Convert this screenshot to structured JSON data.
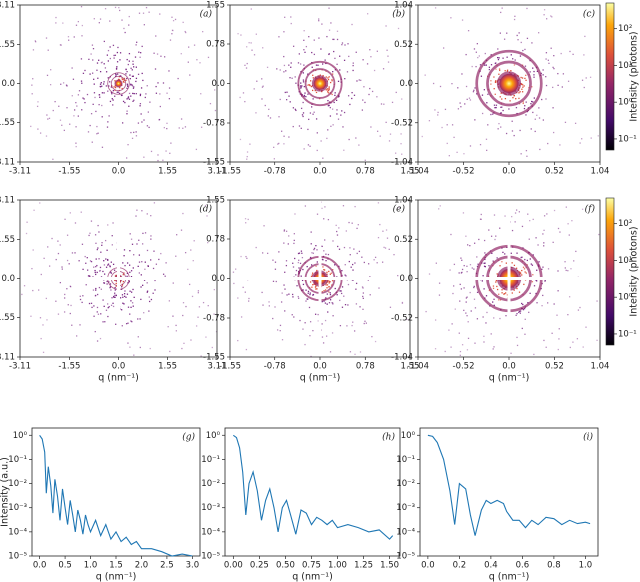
{
  "chart_data": [
    {
      "type": "image",
      "title": "(a)",
      "ylabel": "q (nm⁻¹)",
      "xlim": [
        -3.11,
        3.11
      ],
      "ylim": [
        -3.11,
        3.11
      ],
      "xticks": [
        -3.11,
        -1.55,
        {
          "value": 0,
          "label": "0.0"
        },
        1.55,
        3.11
      ],
      "yticks": [
        -3.11,
        -1.55,
        {
          "value": 0,
          "label": "0.0"
        },
        1.55,
        3.11
      ]
    },
    {
      "type": "image",
      "title": "(b)",
      "xlim": [
        -1.55,
        1.55
      ],
      "ylim": [
        -1.55,
        1.55
      ],
      "xticks": [
        -1.55,
        -0.78,
        {
          "value": 0,
          "label": "0.0"
        },
        0.78,
        1.55
      ],
      "yticks": [
        -1.55,
        -0.78,
        {
          "value": 0,
          "label": "0.0"
        },
        0.78,
        1.55
      ]
    },
    {
      "type": "image",
      "title": "(c)",
      "xlim": [
        -1.04,
        1.04
      ],
      "ylim": [
        -1.04,
        1.04
      ],
      "xticks": [
        -1.04,
        -0.52,
        {
          "value": 0,
          "label": "0.0"
        },
        0.52,
        1.04
      ],
      "yticks": [
        -1.04,
        -0.52,
        {
          "value": 0,
          "label": "0.0"
        },
        0.52,
        1.04
      ]
    },
    {
      "type": "colorbar",
      "label": "Intensity (photons)",
      "yscale": "log",
      "ylim": [
        0.05,
        500
      ],
      "yticks": [
        {
          "value": 0.1,
          "label": "10⁻¹"
        },
        {
          "value": 1,
          "label": "10⁰"
        },
        {
          "value": 10,
          "label": "10¹"
        },
        {
          "value": 100,
          "label": "10²"
        }
      ]
    },
    {
      "type": "image",
      "title": "(d)",
      "beamstop": true,
      "xlabel": "q (nm⁻¹)",
      "ylabel": "q (nm⁻¹)",
      "xlim": [
        -3.11,
        3.11
      ],
      "ylim": [
        -3.11,
        3.11
      ],
      "xticks": [
        -3.11,
        -1.55,
        {
          "value": 0,
          "label": "0.0"
        },
        1.55,
        3.11
      ],
      "yticks": [
        -3.11,
        -1.55,
        {
          "value": 0,
          "label": "0.0"
        },
        1.55,
        3.11
      ]
    },
    {
      "type": "image",
      "title": "(e)",
      "beamstop": true,
      "xlabel": "q (nm⁻¹)",
      "xlim": [
        -1.55,
        1.55
      ],
      "ylim": [
        -1.55,
        1.55
      ],
      "xticks": [
        -1.55,
        -0.78,
        {
          "value": 0,
          "label": "0.0"
        },
        0.78,
        1.55
      ],
      "yticks": [
        -1.55,
        -0.78,
        {
          "value": 0,
          "label": "0.0"
        },
        0.78,
        1.55
      ]
    },
    {
      "type": "image",
      "title": "(f)",
      "beamstop": true,
      "xlabel": "q (nm⁻¹)",
      "xlim": [
        -1.04,
        1.04
      ],
      "ylim": [
        -1.04,
        1.04
      ],
      "xticks": [
        -1.04,
        -0.52,
        {
          "value": 0,
          "label": "0.0"
        },
        0.52,
        1.04
      ],
      "yticks": [
        -1.04,
        -0.52,
        {
          "value": 0,
          "label": "0.0"
        },
        0.52,
        1.04
      ]
    },
    {
      "type": "colorbar",
      "label": "Intensity (photons)",
      "yscale": "log",
      "ylim": [
        0.05,
        500
      ],
      "yticks": [
        {
          "value": 0.1,
          "label": "10⁻¹"
        },
        {
          "value": 1,
          "label": "10⁰"
        },
        {
          "value": 10,
          "label": "10¹"
        },
        {
          "value": 100,
          "label": "10²"
        }
      ]
    },
    {
      "type": "line",
      "title": "(g)",
      "xlabel": "q (nm⁻¹)",
      "ylabel": "Intensity (a.u.)",
      "color": "#1f77b4",
      "yscale": "log",
      "x": [
        0,
        0.05,
        0.1,
        0.13,
        0.17,
        0.22,
        0.26,
        0.3,
        0.35,
        0.4,
        0.45,
        0.5,
        0.55,
        0.6,
        0.65,
        0.7,
        0.75,
        0.8,
        0.85,
        0.9,
        0.95,
        1.0,
        1.1,
        1.2,
        1.3,
        1.4,
        1.5,
        1.6,
        1.7,
        1.8,
        1.9,
        2.0,
        2.2,
        2.4,
        2.6,
        2.8,
        3.0
      ],
      "values": [
        1,
        0.7,
        0.2,
        0.004,
        0.05,
        0.008,
        0.0006,
        0.015,
        0.003,
        0.0003,
        0.006,
        0.001,
        0.0002,
        0.002,
        0.0005,
        0.0001,
        0.0008,
        0.0003,
        8e-05,
        0.0005,
        0.0002,
        0.0001,
        0.0003,
        7e-05,
        0.0002,
        5e-05,
        0.0001,
        4e-05,
        6e-05,
        3e-05,
        4e-05,
        2e-05,
        2e-05,
        1.5e-05,
        1e-05,
        1.2e-05,
        1e-05
      ],
      "xlim": [
        -0.15,
        3.15
      ],
      "ylim": [
        1e-05,
        2
      ],
      "xticks": [
        {
          "value": 0,
          "label": "0.0"
        },
        0.5,
        {
          "value": 1,
          "label": "1.0"
        },
        1.5,
        {
          "value": 2,
          "label": "2.0"
        },
        2.5,
        {
          "value": 3,
          "label": "3.0"
        }
      ],
      "yticks": [
        {
          "value": 1e-05,
          "label": "10⁻⁵"
        },
        {
          "value": 0.0001,
          "label": "10⁻⁴"
        },
        {
          "value": 0.001,
          "label": "10⁻³"
        },
        {
          "value": 0.01,
          "label": "10⁻²"
        },
        {
          "value": 0.1,
          "label": "10⁻¹"
        },
        {
          "value": 1,
          "label": "10⁰"
        }
      ]
    },
    {
      "type": "line",
      "title": "(h)",
      "xlabel": "q (nm⁻¹)",
      "color": "#1f77b4",
      "yscale": "log",
      "x": [
        0,
        0.03,
        0.06,
        0.09,
        0.12,
        0.15,
        0.19,
        0.23,
        0.27,
        0.31,
        0.35,
        0.39,
        0.43,
        0.47,
        0.51,
        0.55,
        0.6,
        0.65,
        0.7,
        0.75,
        0.8,
        0.85,
        0.9,
        0.95,
        1.0,
        1.1,
        1.2,
        1.3,
        1.4,
        1.5,
        1.53
      ],
      "values": [
        1,
        0.8,
        0.3,
        0.03,
        0.0005,
        0.01,
        0.03,
        0.005,
        0.0003,
        0.002,
        0.006,
        0.001,
        0.0001,
        0.001,
        0.002,
        0.0005,
        8e-05,
        0.0008,
        0.0006,
        0.0002,
        0.0004,
        0.0003,
        0.0002,
        0.0003,
        0.00015,
        0.0002,
        0.00015,
        0.0001,
        0.00012,
        5e-05,
        7e-05
      ],
      "xlim": [
        -0.08,
        1.6
      ],
      "ylim": [
        1e-05,
        2
      ],
      "xticks": [
        {
          "value": 0,
          "label": "0.00"
        },
        0.25,
        {
          "value": 0.5,
          "label": "0.50"
        },
        0.75,
        {
          "value": 1,
          "label": "1.00"
        },
        1.25,
        {
          "value": 1.5,
          "label": "1.50"
        }
      ],
      "yticks": [
        {
          "value": 1e-05,
          "label": "10⁻⁵"
        },
        {
          "value": 0.0001,
          "label": "10⁻⁴"
        },
        {
          "value": 0.001,
          "label": "10⁻³"
        },
        {
          "value": 0.01,
          "label": "10⁻²"
        },
        {
          "value": 0.1,
          "label": "10⁻¹"
        },
        {
          "value": 1,
          "label": "10⁰"
        }
      ]
    },
    {
      "type": "line",
      "title": "(i)",
      "xlabel": "q (nm⁻¹)",
      "color": "#1f77b4",
      "yscale": "log",
      "x": [
        0,
        0.03,
        0.06,
        0.1,
        0.14,
        0.17,
        0.2,
        0.24,
        0.27,
        0.3,
        0.34,
        0.37,
        0.4,
        0.44,
        0.48,
        0.5,
        0.54,
        0.58,
        0.62,
        0.66,
        0.7,
        0.75,
        0.8,
        0.85,
        0.9,
        0.95,
        1.0,
        1.03
      ],
      "values": [
        1,
        0.9,
        0.5,
        0.1,
        0.005,
        0.0002,
        0.01,
        0.006,
        0.0005,
        7e-05,
        0.0008,
        0.002,
        0.0015,
        0.002,
        0.0015,
        0.0007,
        0.0003,
        0.0003,
        0.00015,
        0.0003,
        0.0002,
        0.0004,
        0.00035,
        0.0002,
        0.0003,
        0.00022,
        0.00025,
        0.00022
      ],
      "xlim": [
        -0.05,
        1.08
      ],
      "ylim": [
        1e-05,
        2
      ],
      "xticks": [
        {
          "value": 0,
          "label": "0.0"
        },
        0.2,
        0.4,
        0.6,
        0.8,
        {
          "value": 1,
          "label": "1.0"
        }
      ],
      "yticks": [
        {
          "value": 1e-05,
          "label": "10⁻⁵"
        },
        {
          "value": 0.0001,
          "label": "10⁻⁴"
        },
        {
          "value": 0.001,
          "label": "10⁻³"
        },
        {
          "value": 0.01,
          "label": "10⁻²"
        },
        {
          "value": 0.1,
          "label": "10⁻¹"
        },
        {
          "value": 1,
          "label": "10⁰"
        }
      ]
    }
  ]
}
